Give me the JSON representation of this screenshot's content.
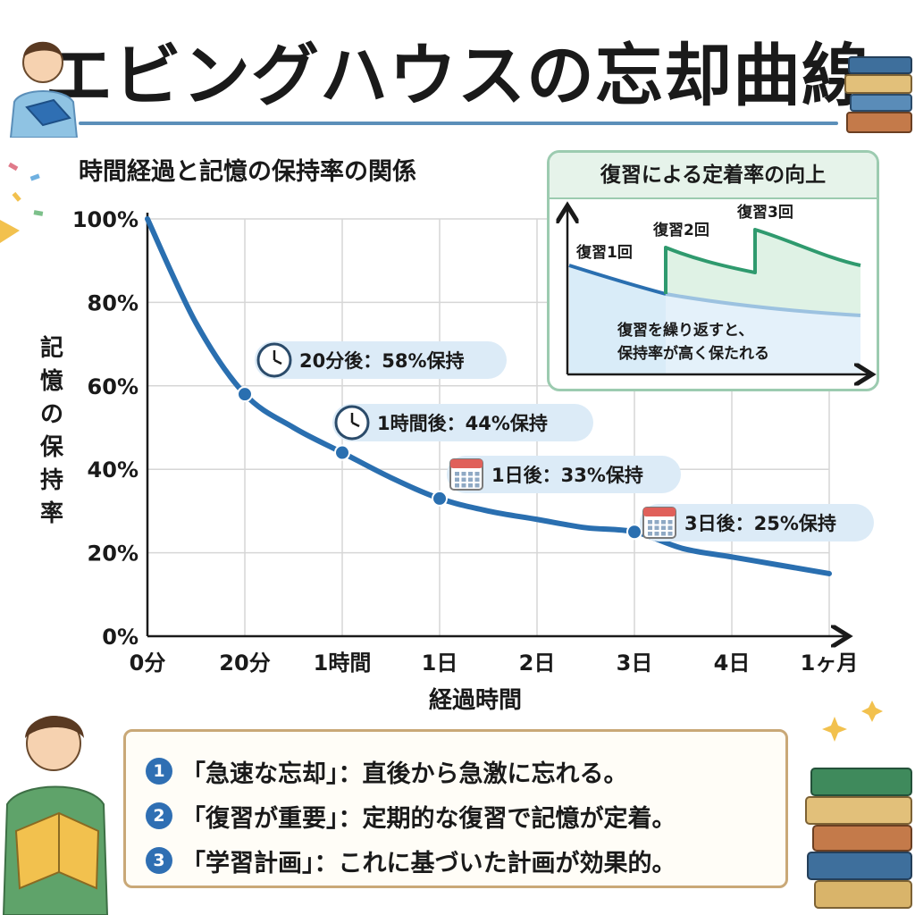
{
  "title": "エビングハウスの忘却曲線",
  "chart_data": {
    "type": "line",
    "title": "時間経過と記憶の保持率の関係",
    "xlabel": "経過時間",
    "ylabel": "記憶の保持率",
    "x_categories": [
      "0分",
      "20分",
      "1時間",
      "1日",
      "2日",
      "3日",
      "4日",
      "1ヶ月"
    ],
    "y_ticks": [
      "0%",
      "20%",
      "40%",
      "60%",
      "80%",
      "100%"
    ],
    "ylim": [
      0,
      100
    ],
    "series": [
      {
        "x": [
          0,
          0.5,
          1,
          1.5,
          2,
          2.5,
          3,
          3.5,
          4,
          4.5,
          5,
          5.5,
          6,
          6.5,
          7
        ],
        "values": [
          100,
          75,
          58,
          50,
          44,
          38,
          33,
          30,
          28,
          26,
          25,
          21,
          19,
          17,
          15
        ]
      }
    ],
    "markers": [
      {
        "x": 1,
        "y": 58
      },
      {
        "x": 2,
        "y": 44
      },
      {
        "x": 3,
        "y": 33
      },
      {
        "x": 5,
        "y": 25
      }
    ],
    "annotations": [
      {
        "text": "20分後：58%保持",
        "icon": "clock-icon"
      },
      {
        "text": "1時間後：44%保持",
        "icon": "clock-icon"
      },
      {
        "text": "1日後：33%保持",
        "icon": "calendar-icon"
      },
      {
        "text": "3日後：25%保持",
        "icon": "calendar-icon"
      }
    ],
    "grid": true,
    "color": "#2a6fb0"
  },
  "inset": {
    "title": "復習による定着率の向上",
    "labels": [
      "復習1回",
      "復習2回",
      "復習3回"
    ],
    "note_lines": [
      "復習を繰り返すと、",
      "保持率が高く保たれる"
    ],
    "colors": {
      "base": "#2a6fb0",
      "review": "#2f9a6e",
      "base_fill": "#d9ecf8",
      "review_fill": "#dff2e5"
    }
  },
  "notes": [
    {
      "num": "1",
      "text": "「急速な忘却」：直後から急激に忘れる。"
    },
    {
      "num": "2",
      "text": "「復習が重要」：定期的な復習で記憶が定着。"
    },
    {
      "num": "3",
      "text": "「学習計画」：これに基づいた計画が効果的。"
    }
  ],
  "decorations": [
    "student-reading-icon",
    "book-stack-icon",
    "confetti-icon",
    "sparkle-icon"
  ]
}
